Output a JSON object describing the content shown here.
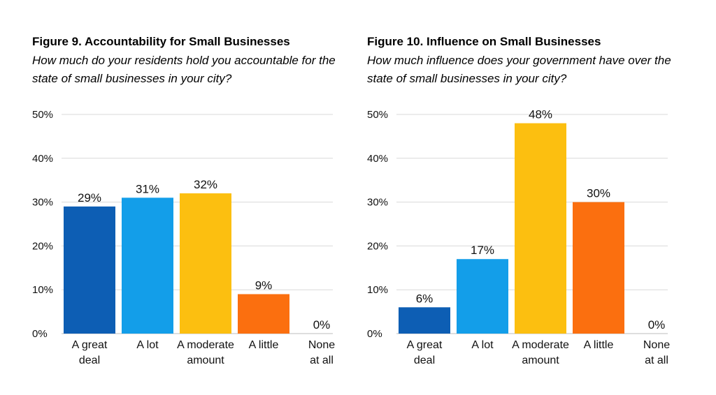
{
  "chart_data": [
    {
      "type": "bar",
      "title": "Figure 9. Accountability for Small Businesses",
      "subtitle": "How much do your residents hold you accountable for the state of small businesses in your city?",
      "categories": [
        [
          "A great",
          "deal"
        ],
        [
          "A lot"
        ],
        [
          "A moderate",
          "amount"
        ],
        [
          "A little"
        ],
        [
          "None",
          "at all"
        ]
      ],
      "values": [
        29,
        31,
        32,
        9,
        0
      ],
      "data_labels": [
        "29%",
        "31%",
        "32%",
        "9%",
        "0%"
      ],
      "colors": [
        "#0d5eb4",
        "#139ee9",
        "#fcbf10",
        "#fb6f0f",
        "#cccccc"
      ],
      "ylim": [
        0,
        50
      ],
      "yticks": [
        "0%",
        "10%",
        "20%",
        "30%",
        "40%",
        "50%"
      ],
      "xlabel": "",
      "ylabel": "",
      "grid": true
    },
    {
      "type": "bar",
      "title": "Figure 10. Influence on Small Businesses",
      "subtitle": "How much influence does your government have over the state of small businesses in your city?",
      "categories": [
        [
          "A great",
          "deal"
        ],
        [
          "A lot"
        ],
        [
          "A moderate",
          "amount"
        ],
        [
          "A little"
        ],
        [
          "None",
          "at all"
        ]
      ],
      "values": [
        6,
        17,
        48,
        30,
        0
      ],
      "data_labels": [
        "6%",
        "17%",
        "48%",
        "30%",
        "0%"
      ],
      "colors": [
        "#0d5eb4",
        "#139ee9",
        "#fcbf10",
        "#fb6f0f",
        "#cccccc"
      ],
      "ylim": [
        0,
        50
      ],
      "yticks": [
        "0%",
        "10%",
        "20%",
        "30%",
        "40%",
        "50%"
      ],
      "xlabel": "",
      "ylabel": "",
      "grid": true
    }
  ]
}
